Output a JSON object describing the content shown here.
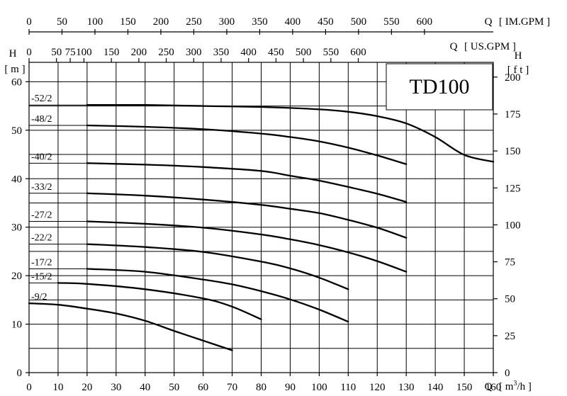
{
  "chart_data": {
    "type": "line",
    "title": "TD100",
    "x": {
      "label": "Q",
      "unit_prefix": "[ m",
      "unit_sup": "3",
      "unit_suffix": "/h ]",
      "range": [
        0,
        160
      ],
      "ticks": [
        0,
        10,
        20,
        30,
        40,
        50,
        60,
        70,
        80,
        90,
        100,
        110,
        120,
        130,
        140,
        150,
        160
      ]
    },
    "x_im_gpm": {
      "label": "Q",
      "unit": "[ IM.GPM ]",
      "ticks": [
        0,
        50,
        100,
        150,
        200,
        250,
        300,
        350,
        400,
        450,
        500,
        550,
        600
      ]
    },
    "x_us_gpm": {
      "label": "Q",
      "unit": "[ US.GPM ]",
      "ticks": [
        0,
        50,
        75,
        100,
        150,
        200,
        250,
        300,
        350,
        400,
        450,
        500,
        550,
        600
      ]
    },
    "y_left": {
      "label": "H",
      "unit": "[ m ]",
      "range": [
        0,
        64
      ],
      "ticks": [
        0,
        10,
        20,
        30,
        40,
        50,
        60
      ]
    },
    "y_right": {
      "label": "H",
      "unit": "[ f t ]",
      "ticks": [
        0,
        25,
        50,
        75,
        100,
        125,
        150,
        175,
        200
      ]
    },
    "series": [
      {
        "name": "-52/2",
        "x": [
          20,
          40,
          60,
          80,
          100,
          110,
          120,
          130,
          140,
          150,
          160
        ],
        "y": [
          55.2,
          55.2,
          55,
          54.8,
          54.3,
          53.8,
          52.9,
          51.4,
          48.6,
          44.9,
          43.5
        ]
      },
      {
        "name": "-48/2",
        "x": [
          20,
          40,
          60,
          80,
          90,
          100,
          110,
          120,
          130
        ],
        "y": [
          51,
          50.7,
          50.2,
          49.3,
          48.6,
          47.7,
          46.4,
          44.8,
          43
        ]
      },
      {
        "name": "-40/2",
        "x": [
          20,
          40,
          60,
          80,
          90,
          100,
          110,
          120,
          130
        ],
        "y": [
          43.2,
          42.9,
          42.4,
          41.6,
          40.6,
          39.6,
          38.3,
          36.9,
          35.2
        ]
      },
      {
        "name": "-33/2",
        "x": [
          20,
          40,
          60,
          80,
          90,
          100,
          110,
          120,
          130
        ],
        "y": [
          37,
          36.5,
          35.7,
          34.6,
          33.8,
          32.9,
          31.5,
          29.9,
          27.8
        ]
      },
      {
        "name": "-27/2",
        "x": [
          20,
          40,
          60,
          80,
          90,
          100,
          110,
          120,
          130
        ],
        "y": [
          31.2,
          30.7,
          29.9,
          28.5,
          27.5,
          26.3,
          24.8,
          23,
          20.8
        ]
      },
      {
        "name": "-22/2",
        "x": [
          20,
          40,
          60,
          80,
          90,
          100,
          110
        ],
        "y": [
          26.5,
          25.9,
          24.9,
          22.9,
          21.5,
          19.6,
          17.2
        ]
      },
      {
        "name": "-17/2",
        "x": [
          20,
          40,
          60,
          70,
          80,
          90,
          100,
          110
        ],
        "y": [
          21.4,
          20.8,
          19.2,
          18.2,
          16.8,
          15.1,
          13,
          10.5
        ]
      },
      {
        "name": "-15/2",
        "x": [
          10,
          20,
          40,
          60,
          70,
          80
        ],
        "y": [
          18.5,
          18.3,
          17.2,
          15.3,
          13.6,
          11
        ]
      },
      {
        "name": "-9/2",
        "x": [
          0,
          10,
          20,
          30,
          40,
          50,
          60,
          70
        ],
        "y": [
          14.3,
          14,
          13.2,
          12.2,
          10.7,
          8.6,
          6.6,
          4.6
        ]
      }
    ]
  }
}
